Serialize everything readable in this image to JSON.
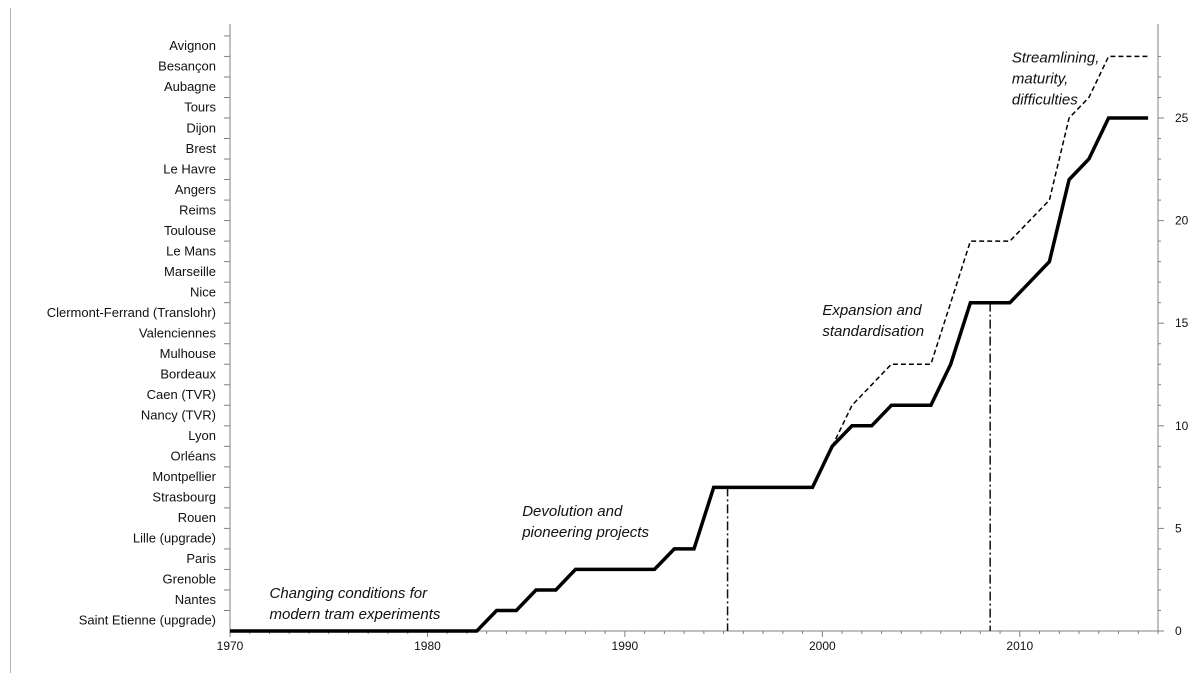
{
  "chart_data": {
    "type": "line",
    "x_range": [
      1970,
      2017
    ],
    "y_range": [
      0,
      28
    ],
    "x_ticks": [
      1970,
      1980,
      1990,
      2000,
      2010
    ],
    "y_ticks": [
      0,
      5,
      10,
      15,
      20,
      25
    ],
    "categories": [
      "Saint Etienne (upgrade)",
      "Nantes",
      "Grenoble",
      "Paris",
      "Lille (upgrade)",
      "Rouen",
      "Strasbourg",
      "Montpellier",
      "Orléans",
      "Lyon",
      "Nancy (TVR)",
      "Caen (TVR)",
      "Bordeaux",
      "Mulhouse",
      "Valenciennes",
      "Clermont-Ferrand (Translohr)",
      "Nice",
      "Marseille",
      "Le Mans",
      "Toulouse",
      "Reims",
      "Angers",
      "Le Havre",
      "Brest",
      "Dijon",
      "Tours",
      "Aubagne",
      "Besançon",
      "Avignon"
    ],
    "series": [
      {
        "style": "solid",
        "points": [
          [
            1970,
            0
          ],
          [
            1982.5,
            0
          ],
          [
            1983.5,
            1
          ],
          [
            1984.5,
            1
          ],
          [
            1985.5,
            2
          ],
          [
            1986.5,
            2
          ],
          [
            1987.5,
            3
          ],
          [
            1991.5,
            3
          ],
          [
            1992.5,
            4
          ],
          [
            1993.5,
            4
          ],
          [
            1994.5,
            7
          ],
          [
            1999.5,
            7
          ],
          [
            2000.5,
            9
          ],
          [
            2001.5,
            10
          ],
          [
            2002.5,
            10
          ],
          [
            2003.5,
            11
          ],
          [
            2005.5,
            11
          ],
          [
            2006.5,
            13
          ],
          [
            2007.5,
            16
          ],
          [
            2009.5,
            16
          ],
          [
            2010.5,
            17
          ],
          [
            2011.5,
            18
          ],
          [
            2012.5,
            22
          ],
          [
            2013.5,
            23
          ],
          [
            2014.5,
            25
          ],
          [
            2016.5,
            25
          ]
        ]
      },
      {
        "style": "dashed",
        "points": [
          [
            2000.5,
            9
          ],
          [
            2001.5,
            11
          ],
          [
            2003.5,
            13
          ],
          [
            2005.5,
            13
          ],
          [
            2006.5,
            16
          ],
          [
            2007.5,
            19
          ],
          [
            2009.5,
            19
          ],
          [
            2011.5,
            21
          ],
          [
            2012.5,
            25
          ],
          [
            2013.5,
            26
          ],
          [
            2014.5,
            28
          ],
          [
            2016.5,
            28
          ]
        ]
      }
    ],
    "period_dividers": [
      {
        "x": 1995.2,
        "y_top": 7
      },
      {
        "x": 2008.5,
        "y_top": 16
      }
    ],
    "annotations": [
      {
        "lines": [
          "Changing conditions for",
          "modern tram experiments"
        ],
        "x": 1972,
        "y": 1.6
      },
      {
        "lines": [
          "Devolution and",
          "pioneering projects"
        ],
        "x": 1984.8,
        "y": 5.6
      },
      {
        "lines": [
          "Expansion and",
          "standardisation"
        ],
        "x": 2000,
        "y": 15.4
      },
      {
        "lines": [
          "Streamlining,",
          "maturity,",
          "difficulties"
        ],
        "x": 2009.6,
        "y": 27.7
      }
    ]
  }
}
